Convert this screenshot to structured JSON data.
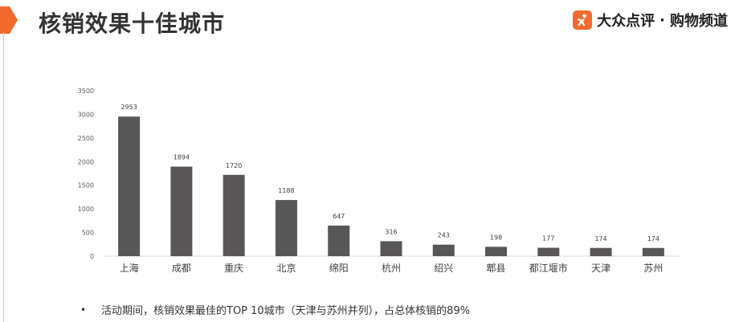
{
  "header": {
    "title": "核销效果十佳城市",
    "brand_name": "大众点评",
    "brand_separator": "·",
    "brand_channel": "购物频道"
  },
  "colors": {
    "accent": "#f26a2e",
    "bar": "#595657",
    "axis": "#d9d9d9",
    "text": "#333333"
  },
  "chart_data": {
    "type": "bar",
    "title": "",
    "xlabel": "",
    "ylabel": "",
    "categories": [
      "上海",
      "成都",
      "重庆",
      "北京",
      "绵阳",
      "杭州",
      "绍兴",
      "郫县",
      "都江堰市",
      "天津",
      "苏州"
    ],
    "values": [
      2953,
      1894,
      1720,
      1188,
      647,
      316,
      243,
      198,
      177,
      174,
      174
    ],
    "ylim": [
      0,
      3500
    ],
    "yticks": [
      0,
      500,
      1000,
      1500,
      2000,
      2500,
      3000,
      3500
    ],
    "grid": false,
    "legend": "none",
    "data_labels": true
  },
  "footnote": {
    "bullet": "•",
    "text": "活动期间，核销效果最佳的TOP 10城市（天津与苏州并列），占总体核销的89%"
  }
}
